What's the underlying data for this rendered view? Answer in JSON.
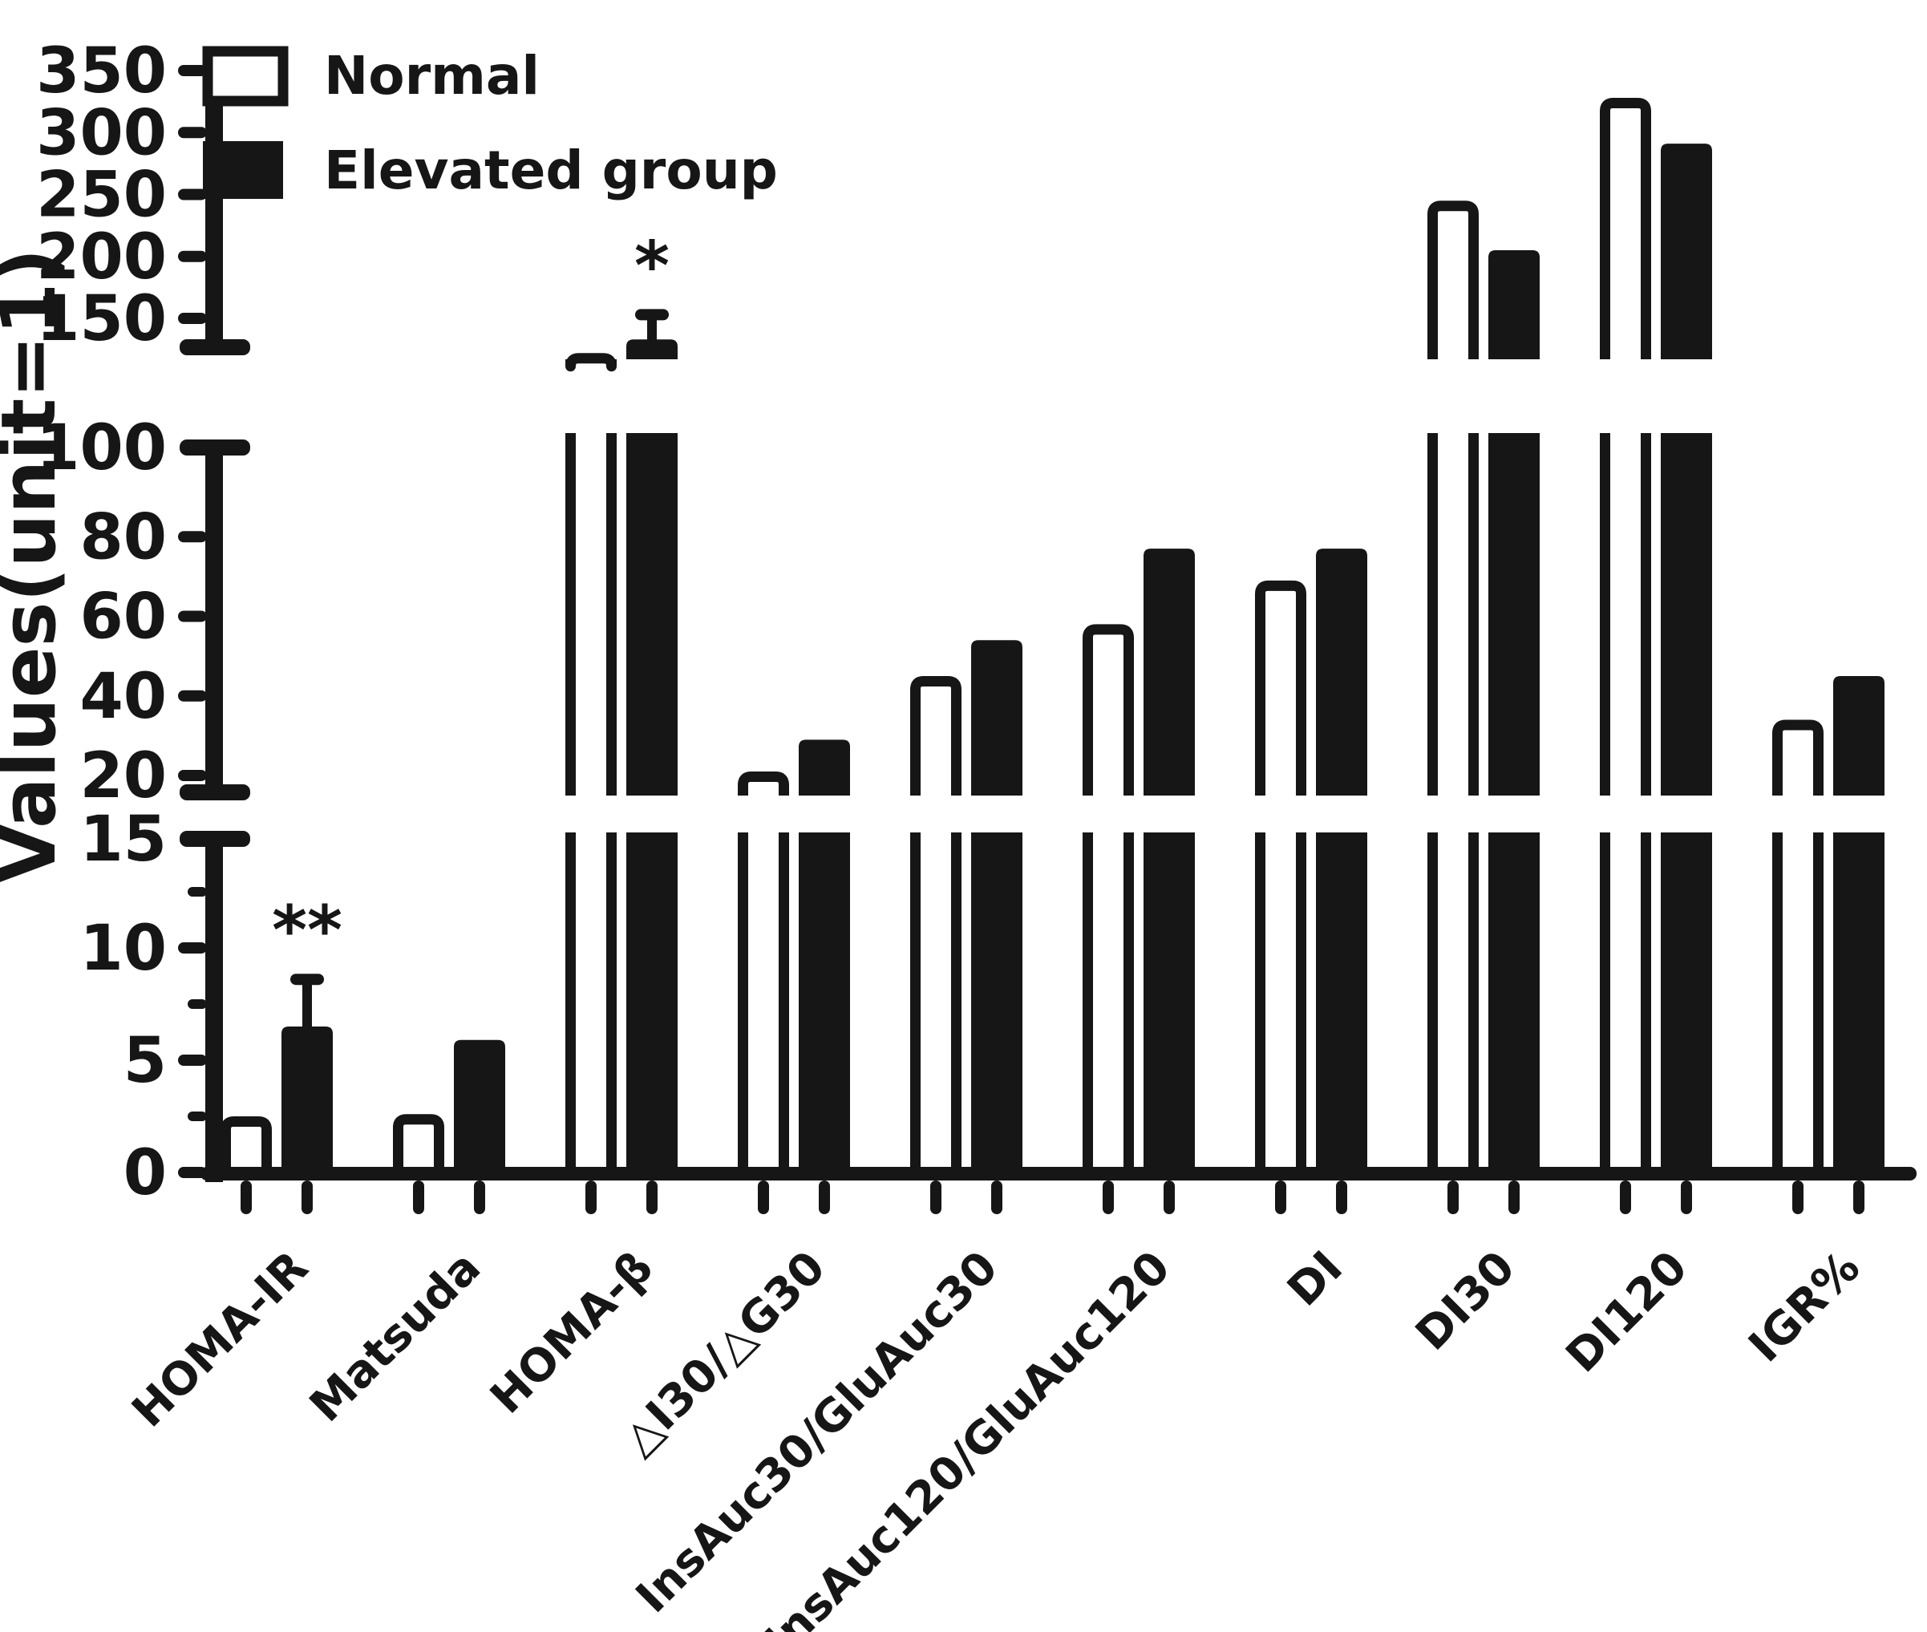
{
  "figure": {
    "kind": "grouped bar chart with broken y-axis"
  },
  "legend": {
    "items": [
      {
        "label": "Normal",
        "swatch": "open-white"
      },
      {
        "label": "Elevated group",
        "swatch": "filled-black"
      }
    ]
  },
  "y_axis": {
    "title": "Values(unit=1)",
    "segment_ticks": [
      {
        "major": [
          "0",
          "5",
          "10",
          "15"
        ],
        "minor": [
          "2.5",
          "7.5",
          "12.5"
        ]
      },
      {
        "major": [
          "20",
          "40",
          "60",
          "80",
          "100"
        ],
        "minor": []
      },
      {
        "major": [
          "150",
          "200",
          "250",
          "300",
          "350"
        ],
        "minor": []
      }
    ]
  },
  "chart_data": {
    "type": "bar",
    "title": "",
    "xlabel": "",
    "ylabel": "Values(unit=1)",
    "ylim": [
      0,
      350
    ],
    "y_axis_breaks": [
      [
        15,
        20
      ],
      [
        100,
        150
      ]
    ],
    "grid": false,
    "legend_position": "top-left",
    "categories": [
      "HOMA-IR",
      "Matsuda",
      "HOMA-β",
      "△I30/△G30",
      "InsAuc30/GluAuc30",
      "InsAuc120/GluAuc120",
      "DI",
      "DI30",
      "DI120",
      "IGR%"
    ],
    "series": [
      {
        "name": "Normal",
        "fill": "white",
        "values": [
          2.5,
          2.6,
          122,
          21,
          45,
          58,
          69,
          245,
          328,
          34
        ]
      },
      {
        "name": "Elevated group",
        "fill": "black",
        "values": [
          6.5,
          5.9,
          133,
          29,
          54,
          77,
          77,
          205,
          291,
          45
        ]
      }
    ],
    "error_bar_tops": {
      "series": "Elevated group",
      "values": [
        8.6,
        null,
        153,
        null,
        null,
        null,
        null,
        null,
        null,
        null
      ]
    },
    "significance": [
      {
        "category": "HOMA-IR",
        "label": "**"
      },
      {
        "category": "HOMA-β",
        "label": "*"
      }
    ],
    "colors": {
      "ink": "#161616",
      "background": "#ffffff"
    }
  }
}
